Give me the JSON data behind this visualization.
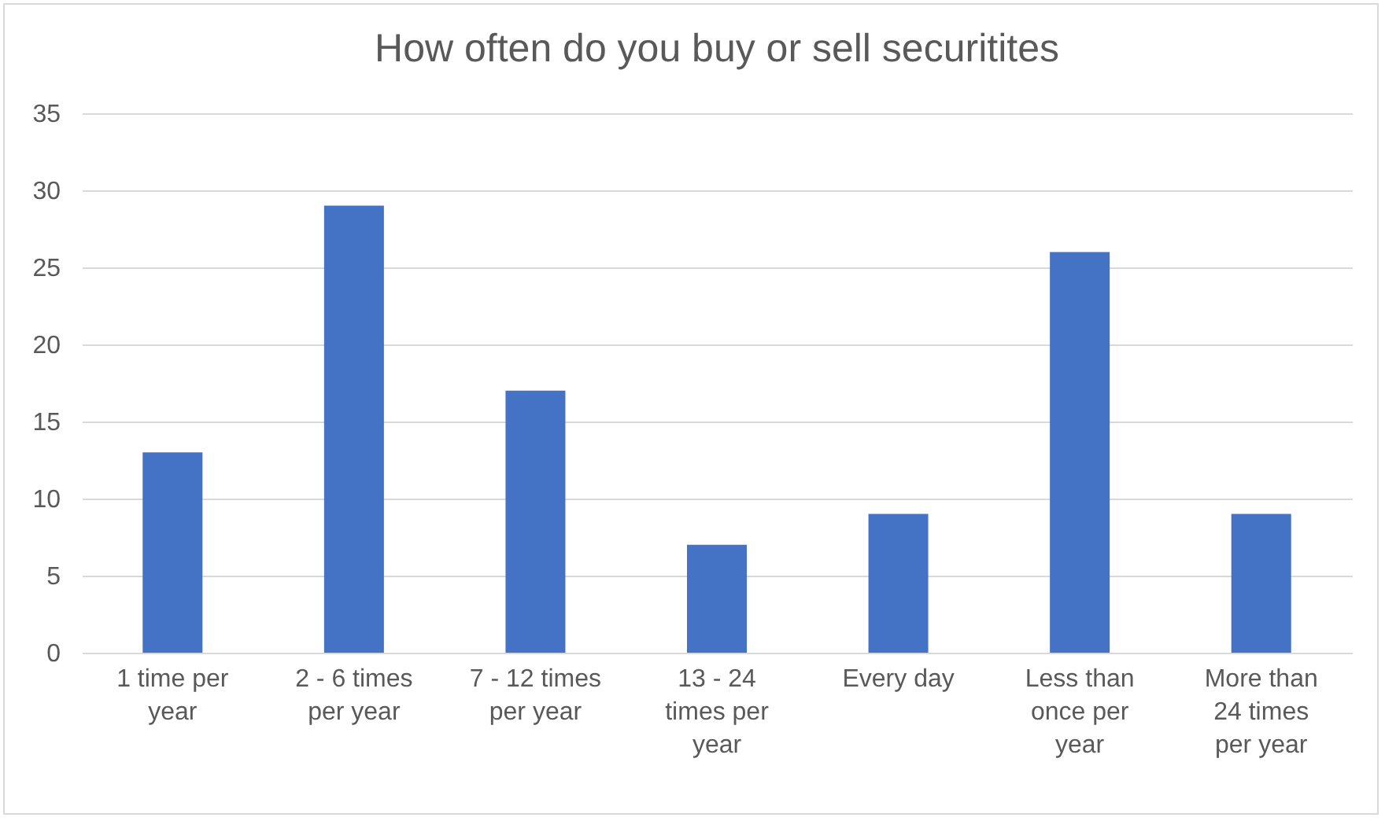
{
  "chart_data": {
    "type": "bar",
    "title": "How often do you buy or sell securitites",
    "categories": [
      "1 time per year",
      "2 - 6 times per year",
      "7 - 12 times per year",
      "13 - 24 times per year",
      "Every day",
      "Less than once per year",
      "More than 24 times per year"
    ],
    "values": [
      13,
      29,
      17,
      7,
      9,
      26,
      9
    ],
    "color": "#4472c4",
    "ylim": [
      0,
      35
    ],
    "yticks": [
      0,
      5,
      10,
      15,
      20,
      25,
      30,
      35
    ],
    "grid": "y"
  }
}
